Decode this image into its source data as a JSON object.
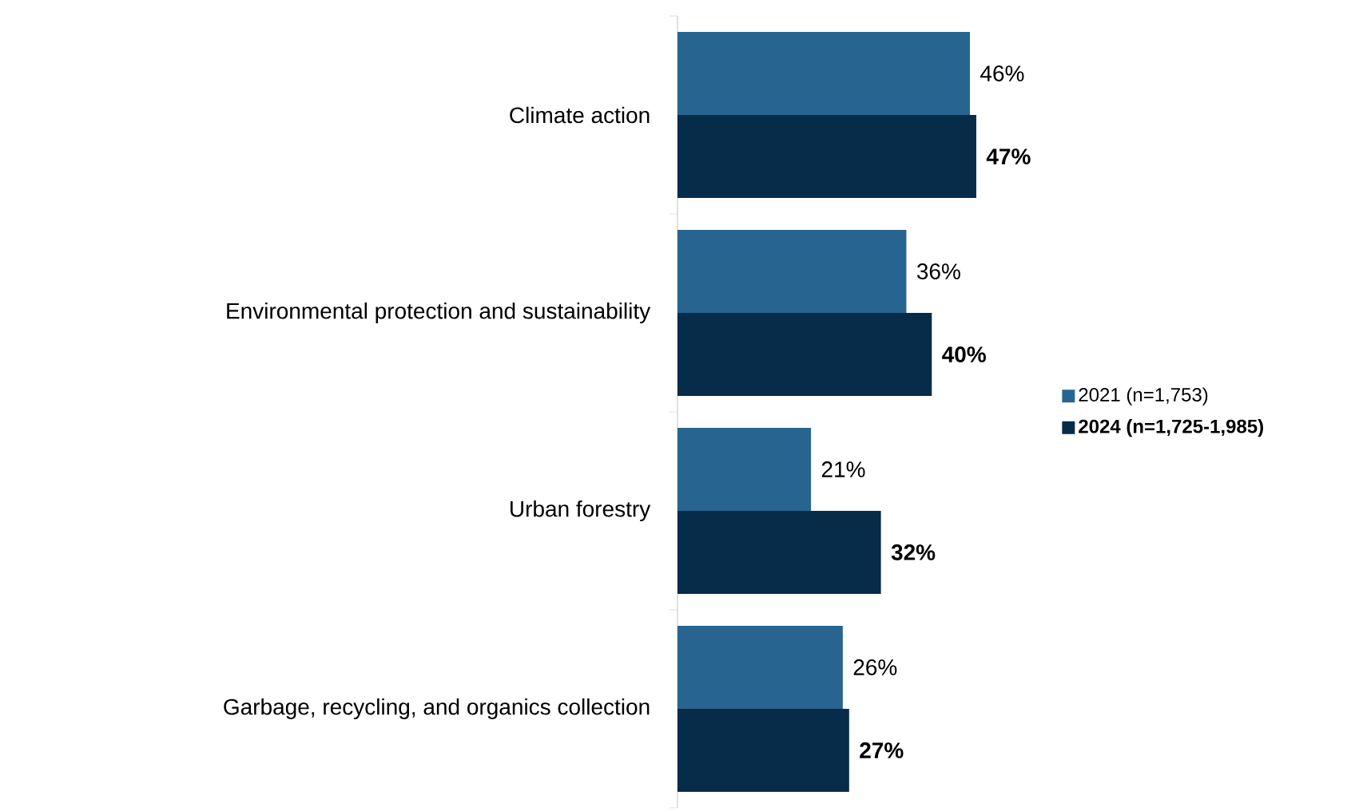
{
  "chart_data": {
    "type": "bar",
    "orientation": "horizontal",
    "categories": [
      "Climate action",
      "Environmental protection and sustainability",
      "Urban forestry",
      "Garbage, recycling, and organics collection"
    ],
    "series": [
      {
        "name": "2021 (n=1,753)",
        "color": "#276590",
        "values": [
          46,
          36,
          21,
          26
        ],
        "value_labels": [
          "46%",
          "36%",
          "21%",
          "26%"
        ]
      },
      {
        "name": "**2024 (n=1,725-1,985)**",
        "color": "#062c4a",
        "values": [
          47,
          40,
          32,
          27
        ],
        "value_labels": [
          "**47%**",
          "**40%**",
          "**32%**",
          "**27%**"
        ]
      }
    ],
    "legend": "right"
  }
}
